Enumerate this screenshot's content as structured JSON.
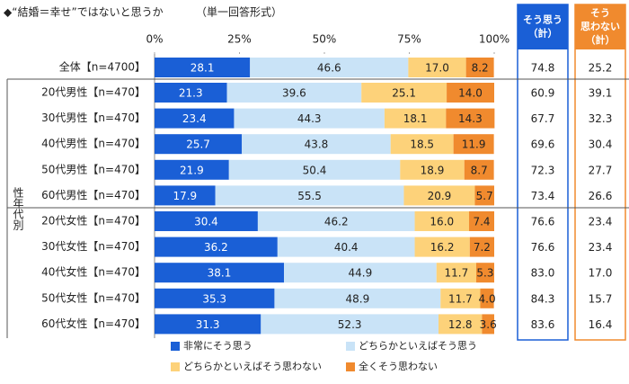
{
  "chart_data": {
    "type": "stacked-bar-horizontal",
    "title": "◆“結婚＝幸せ”ではないと思うか",
    "subtitle": "（単一回答形式）",
    "categories": [
      "全体【n=4700】",
      "20代男性【n=470】",
      "30代男性【n=470】",
      "40代男性【n=470】",
      "50代男性【n=470】",
      "60代男性【n=470】",
      "20代女性【n=470】",
      "30代女性【n=470】",
      "40代女性【n=470】",
      "50代女性【n=470】",
      "60代女性【n=470】"
    ],
    "group_label": "性年代別",
    "xlim": [
      0,
      100
    ],
    "xticks": [
      {
        "value": 0,
        "label": "0%"
      },
      {
        "value": 25,
        "label": "25%"
      },
      {
        "value": 50,
        "label": "50%"
      },
      {
        "value": 75,
        "label": "75%"
      },
      {
        "value": 100,
        "label": "100%"
      }
    ],
    "series": [
      {
        "name": "非常にそう思う",
        "color": "#1a5fd6",
        "values": [
          28.1,
          21.3,
          23.4,
          25.7,
          21.9,
          17.9,
          30.4,
          36.2,
          38.1,
          35.3,
          31.3
        ],
        "value_labels": [
          "28.1",
          "21.3",
          "23.4",
          "25.7",
          "21.9",
          "17.9",
          "30.4",
          "36.2",
          "38.1",
          "35.3",
          "31.3"
        ]
      },
      {
        "name": "どちらかといえばそう思う",
        "color": "#c9e3f7",
        "values": [
          46.6,
          39.6,
          44.3,
          43.8,
          50.4,
          55.5,
          46.2,
          40.4,
          44.9,
          48.9,
          52.3
        ],
        "value_labels": [
          "46.6",
          "39.6",
          "44.3",
          "43.8",
          "50.4",
          "55.5",
          "46.2",
          "40.4",
          "44.9",
          "48.9",
          "52.3"
        ]
      },
      {
        "name": "どちらかといえばそう思わない",
        "color": "#fdd27a",
        "values": [
          17.0,
          25.1,
          18.1,
          18.5,
          18.9,
          20.9,
          16.0,
          16.2,
          11.7,
          11.7,
          12.8
        ],
        "value_labels": [
          "17.0",
          "25.1",
          "18.1",
          "18.5",
          "18.9",
          "20.9",
          "16.0",
          "16.2",
          "11.7",
          "11.7",
          "12.8"
        ]
      },
      {
        "name": "全くそう思わない",
        "color": "#f08a2e",
        "values": [
          8.2,
          14.0,
          14.3,
          11.9,
          8.7,
          5.7,
          7.4,
          7.2,
          5.3,
          4.0,
          3.6
        ],
        "value_labels": [
          "8.2",
          "14.0",
          "14.3",
          "11.9",
          "8.7",
          "5.7",
          "7.4",
          "7.2",
          "5.3",
          "4.0",
          "3.6"
        ]
      }
    ],
    "summary": [
      {
        "header_lines": [
          "そう思う",
          "（計）"
        ],
        "color": "#1a5fd6",
        "values": [
          74.8,
          60.9,
          67.7,
          69.6,
          72.3,
          73.4,
          76.6,
          76.6,
          83.0,
          84.3,
          83.6
        ],
        "value_labels": [
          "74.8",
          "60.9",
          "67.7",
          "69.6",
          "72.3",
          "73.4",
          "76.6",
          "76.6",
          "83.0",
          "84.3",
          "83.6"
        ]
      },
      {
        "header_lines": [
          "そう",
          "思わない",
          "（計）"
        ],
        "color": "#f08a2e",
        "values": [
          25.2,
          39.1,
          32.3,
          30.4,
          27.7,
          26.6,
          23.4,
          23.4,
          17.0,
          15.7,
          16.4
        ],
        "value_labels": [
          "25.2",
          "39.1",
          "32.3",
          "30.4",
          "27.7",
          "26.6",
          "23.4",
          "23.4",
          "17.0",
          "15.7",
          "16.4"
        ]
      }
    ]
  }
}
